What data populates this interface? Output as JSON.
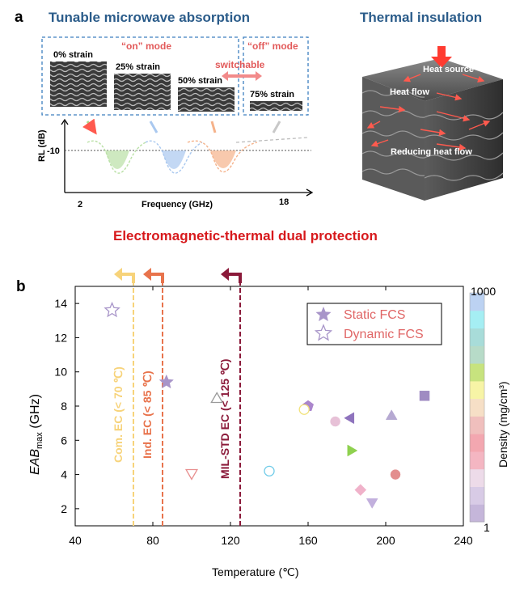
{
  "panel_a": {
    "label": "a",
    "left_title": "Tunable microwave absorption",
    "right_title": "Thermal insulation",
    "on_mode": "“on” mode",
    "off_mode": "“off” mode",
    "switchable": "switchable",
    "strains": [
      "0% strain",
      "25% strain",
      "50% strain",
      "75% strain"
    ],
    "rl_ylabel": "RL (dB)",
    "rl_ytick": "-10",
    "rl_xlabel": "Frequency (GHz)",
    "rl_xmin": "2",
    "rl_xmax": "18",
    "heat_labels": [
      "Heat source",
      "Heat flow",
      "Reducing heat flow"
    ],
    "bottom_title": "Electromagnetic-thermal dual protection",
    "curve_colors": [
      "#b9e0a5",
      "#a9c8ef",
      "#f5b28a"
    ]
  },
  "panel_b": {
    "label": "b",
    "legend": {
      "static": "Static FCS",
      "dynamic": "Dynamic FCS"
    },
    "colorbar": {
      "label": "Density (mg/cm³)",
      "max": "1000",
      "min": "1",
      "colors": [
        "#c5b6da",
        "#d8cbe6",
        "#eddbe9",
        "#f4b6c2",
        "#f3a7b0",
        "#f0bfbd",
        "#f6dfc6",
        "#f7f4a6",
        "#c7e37e",
        "#b7dbc8",
        "#a8dcd9",
        "#a5eef3",
        "#bcd2f2"
      ]
    },
    "ec_lines": [
      {
        "label": "Com. EC (< 70 ℃)",
        "x": 70,
        "color": "#f7d37a"
      },
      {
        "label": "Ind. EC (< 85 ℃)",
        "x": 85,
        "color": "#e8734c"
      },
      {
        "label": "MIL-STD EC (< 125 ℃)",
        "x": 125,
        "color": "#8b1a3a"
      }
    ]
  },
  "chart_data": {
    "type": "scatter",
    "title": "",
    "xlabel": "Temperature (℃)",
    "ylabel": "EAB",
    "ylabel_sub": "max",
    "ylabel_unit": " (GHz)",
    "xlim": [
      40,
      240
    ],
    "ylim": [
      1,
      15
    ],
    "xticks": [
      "40",
      "80",
      "120",
      "160",
      "200",
      "240"
    ],
    "yticks": [
      "2",
      "4",
      "6",
      "8",
      "10",
      "12",
      "14"
    ],
    "series": [
      {
        "name": "Static FCS",
        "points": [
          {
            "x": 87,
            "y": 9.4,
            "marker": "star",
            "color": "#a895c9",
            "filled": true
          },
          {
            "x": 160,
            "y": 8.0,
            "marker": "pentagon",
            "color": "#ab86cc",
            "filled": true
          },
          {
            "x": 220,
            "y": 8.6,
            "marker": "square",
            "color": "#9f8bc2",
            "filled": true
          },
          {
            "x": 203,
            "y": 7.4,
            "marker": "triangle-up",
            "color": "#b6a9d2",
            "filled": true
          },
          {
            "x": 174,
            "y": 7.1,
            "marker": "circle",
            "color": "#e7c1d7",
            "filled": true
          },
          {
            "x": 182,
            "y": 7.3,
            "marker": "triangle-left",
            "color": "#8e73bd",
            "filled": true
          },
          {
            "x": 182,
            "y": 5.4,
            "marker": "triangle-right",
            "color": "#8fd14f",
            "filled": true
          },
          {
            "x": 205,
            "y": 4.0,
            "marker": "circle",
            "color": "#e38e8e",
            "filled": true
          },
          {
            "x": 187,
            "y": 3.1,
            "marker": "diamond",
            "color": "#f0b2ca",
            "filled": true
          },
          {
            "x": 193,
            "y": 2.4,
            "marker": "triangle-down",
            "color": "#c2b0dd",
            "filled": true
          }
        ]
      },
      {
        "name": "Dynamic FCS",
        "points": [
          {
            "x": 59,
            "y": 13.6,
            "marker": "star",
            "color": "#a895c9",
            "filled": false
          },
          {
            "x": 113,
            "y": 8.4,
            "marker": "triangle-up",
            "color": "#9a9a9a",
            "filled": false
          },
          {
            "x": 158,
            "y": 7.8,
            "marker": "circle",
            "color": "#f2e27a",
            "filled": false
          },
          {
            "x": 100,
            "y": 4.1,
            "marker": "triangle-down",
            "color": "#e88f8f",
            "filled": false
          },
          {
            "x": 140,
            "y": 4.2,
            "marker": "circle",
            "color": "#6fcbe8",
            "filled": false
          }
        ]
      }
    ]
  }
}
